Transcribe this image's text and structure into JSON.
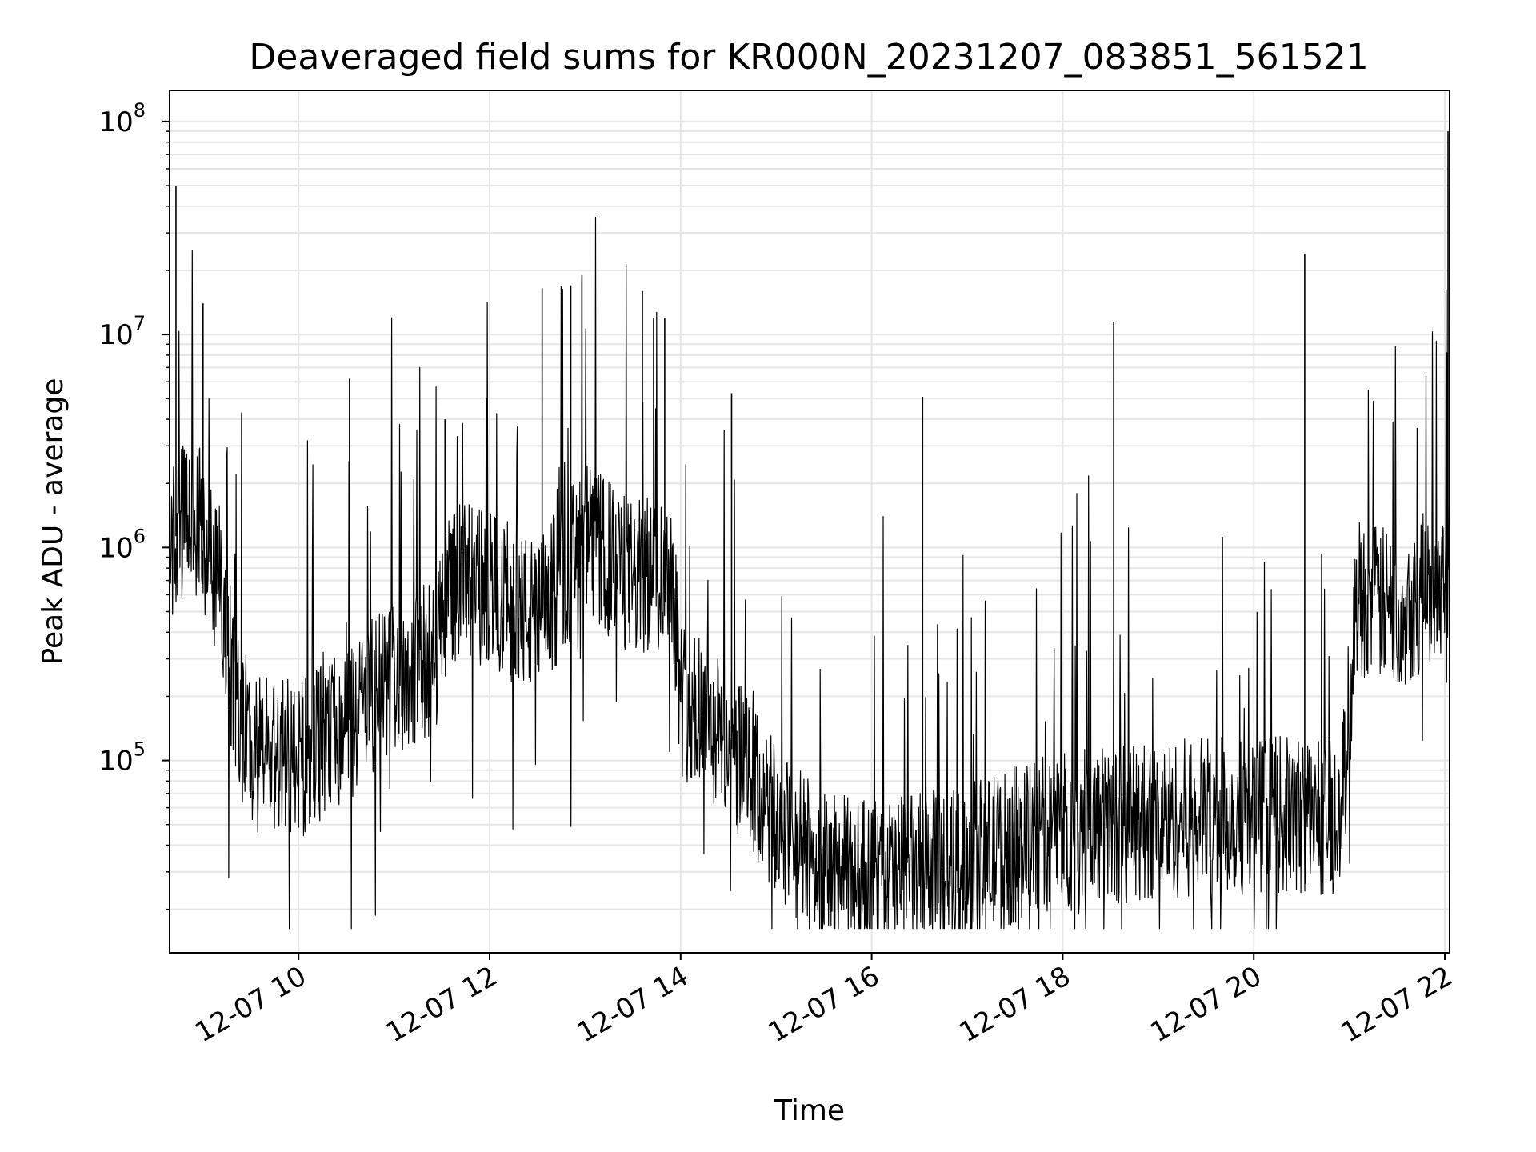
{
  "chart_data": {
    "type": "line",
    "title": "Deaveraged field sums for KR000N_20231207_083851_561521",
    "xlabel": "Time",
    "ylabel": "Peak ADU - average",
    "yscale": "log",
    "grid": true,
    "legend": "none",
    "line_color": "#000000",
    "grid_color": "#e6e6e6",
    "xlim": [
      "2023-12-07 08:39",
      "2023-12-07 22:03"
    ],
    "ylim": [
      12500,
      140000000
    ],
    "x_ticks": [
      {
        "t": "2023-12-07 10:00",
        "label": "12-07 10"
      },
      {
        "t": "2023-12-07 12:00",
        "label": "12-07 12"
      },
      {
        "t": "2023-12-07 14:00",
        "label": "12-07 14"
      },
      {
        "t": "2023-12-07 16:00",
        "label": "12-07 16"
      },
      {
        "t": "2023-12-07 18:00",
        "label": "12-07 18"
      },
      {
        "t": "2023-12-07 20:00",
        "label": "12-07 20"
      },
      {
        "t": "2023-12-07 22:00",
        "label": "12-07 22"
      }
    ],
    "y_ticks": [
      {
        "value": 100000,
        "base": "10",
        "exp": "5"
      },
      {
        "value": 1000000,
        "base": "10",
        "exp": "6"
      },
      {
        "value": 10000000,
        "base": "10",
        "exp": "7"
      },
      {
        "value": 100000000,
        "base": "10",
        "exp": "8"
      }
    ],
    "series": [
      {
        "baseline": [
          [
            "2023-12-07 08:39",
            1000000
          ],
          [
            "2023-12-07 08:50",
            1400000
          ],
          [
            "2023-12-07 09:00",
            1200000
          ],
          [
            "2023-12-07 09:10",
            700000
          ],
          [
            "2023-12-07 09:20",
            200000
          ],
          [
            "2023-12-07 09:30",
            110000
          ],
          [
            "2023-12-07 10:00",
            100000
          ],
          [
            "2023-12-07 10:30",
            150000
          ],
          [
            "2023-12-07 11:00",
            250000
          ],
          [
            "2023-12-07 11:25",
            300000
          ],
          [
            "2023-12-07 11:35",
            700000
          ],
          [
            "2023-12-07 12:00",
            650000
          ],
          [
            "2023-12-07 12:30",
            450000
          ],
          [
            "2023-12-07 13:00",
            1100000
          ],
          [
            "2023-12-07 13:30",
            700000
          ],
          [
            "2023-12-07 13:55",
            800000
          ],
          [
            "2023-12-07 14:00",
            200000
          ],
          [
            "2023-12-07 14:30",
            120000
          ],
          [
            "2023-12-07 15:00",
            50000
          ],
          [
            "2023-12-07 15:30",
            30000
          ],
          [
            "2023-12-07 16:00",
            28000
          ],
          [
            "2023-12-07 16:30",
            30000
          ],
          [
            "2023-12-07 17:00",
            33000
          ],
          [
            "2023-12-07 17:30",
            40000
          ],
          [
            "2023-12-07 18:00",
            48000
          ],
          [
            "2023-12-07 18:30",
            50000
          ],
          [
            "2023-12-07 19:00",
            52000
          ],
          [
            "2023-12-07 19:30",
            55000
          ],
          [
            "2023-12-07 20:00",
            55000
          ],
          [
            "2023-12-07 20:30",
            55000
          ],
          [
            "2023-12-07 20:55",
            55000
          ],
          [
            "2023-12-07 21:05",
            600000
          ],
          [
            "2023-12-07 21:30",
            500000
          ],
          [
            "2023-12-07 21:45",
            600000
          ],
          [
            "2023-12-07 22:03",
            800000
          ]
        ],
        "spikes": [
          [
            "2023-12-07 08:43",
            50000000
          ],
          [
            "2023-12-07 09:00",
            14000000
          ],
          [
            "2023-12-07 10:32",
            6200000
          ],
          [
            "2023-12-07 11:32",
            4000000
          ],
          [
            "2023-12-07 12:33",
            16500000
          ],
          [
            "2023-12-07 12:51",
            17000000
          ],
          [
            "2023-12-07 12:58",
            19000000
          ],
          [
            "2023-12-07 13:36",
            16000000
          ],
          [
            "2023-12-07 13:43",
            12000000
          ],
          [
            "2023-12-07 13:50",
            12000000
          ],
          [
            "2023-12-07 14:32",
            5300000
          ],
          [
            "2023-12-07 16:32",
            5100000
          ],
          [
            "2023-12-07 18:32",
            11500000
          ],
          [
            "2023-12-07 20:32",
            24000000
          ],
          [
            "2023-12-07 22:02",
            90000000
          ]
        ]
      }
    ]
  }
}
